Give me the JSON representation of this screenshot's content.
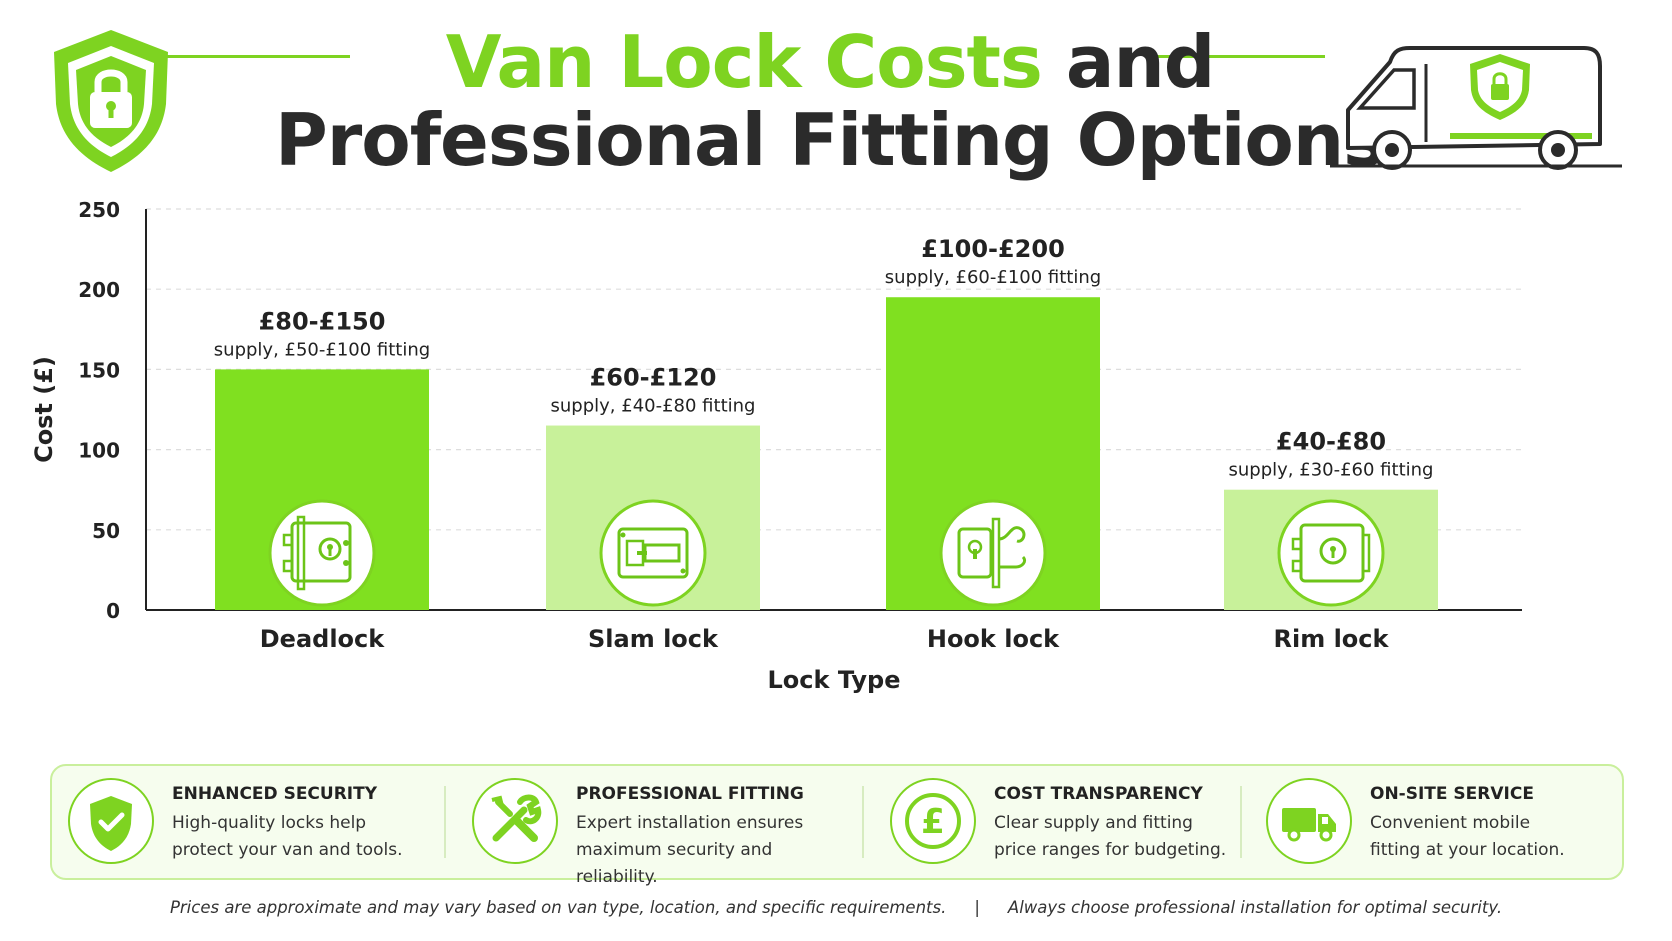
{
  "header": {
    "title_accent": "Van Lock Costs",
    "title_rest": " and",
    "title_line2": "Professional Fitting Options"
  },
  "colors": {
    "accent": "#7ed321",
    "bar_dark": "#80e020",
    "bar_light": "#c8f19a",
    "text_dark": "#2b2b2b",
    "panel_bg": "#f6fdee"
  },
  "icons": {
    "logo": "shield-lock-icon",
    "van": "van-icon",
    "bars": [
      "deadlock-icon",
      "slam-lock-icon",
      "hook-lock-icon",
      "rim-lock-icon"
    ]
  },
  "chart_data": {
    "type": "bar",
    "categories": [
      "Deadlock",
      "Slam lock",
      "Hook lock",
      "Rim lock"
    ],
    "values": [
      150,
      115,
      195,
      75
    ],
    "bar_colors": [
      "#80e020",
      "#c8f19a",
      "#80e020",
      "#c8f19a"
    ],
    "price_labels": [
      "£80-£150",
      "£60-£120",
      "£100-£200",
      "£40-£80"
    ],
    "fitting_labels": [
      "supply, £50-£100 fitting",
      "supply, £40-£80 fitting",
      "supply, £60-£100 fitting",
      "supply, £30-£60 fitting"
    ],
    "xlabel": "Lock Type",
    "ylabel": "Cost (£)",
    "ylim": [
      0,
      250
    ],
    "yticks": [
      0,
      50,
      100,
      150,
      200,
      250
    ],
    "grid": true
  },
  "features": [
    {
      "icon": "shield-check-icon",
      "title": "ENHANCED SECURITY",
      "desc": "High-quality locks help protect your van and tools."
    },
    {
      "icon": "tools-icon",
      "title": "PROFESSIONAL FITTING",
      "desc": "Expert installation ensures maximum security and reliability."
    },
    {
      "icon": "pound-icon",
      "title": "COST TRANSPARENCY",
      "desc": "Clear supply and fitting price ranges for budgeting."
    },
    {
      "icon": "delivery-van-icon",
      "title": "ON-SITE SERVICE",
      "desc": "Convenient mobile fitting at your location."
    }
  ],
  "footer": {
    "left": "Prices are approximate and may vary based on van type, location, and specific requirements.",
    "separator": "|",
    "right": "Always choose professional installation for optimal security."
  }
}
